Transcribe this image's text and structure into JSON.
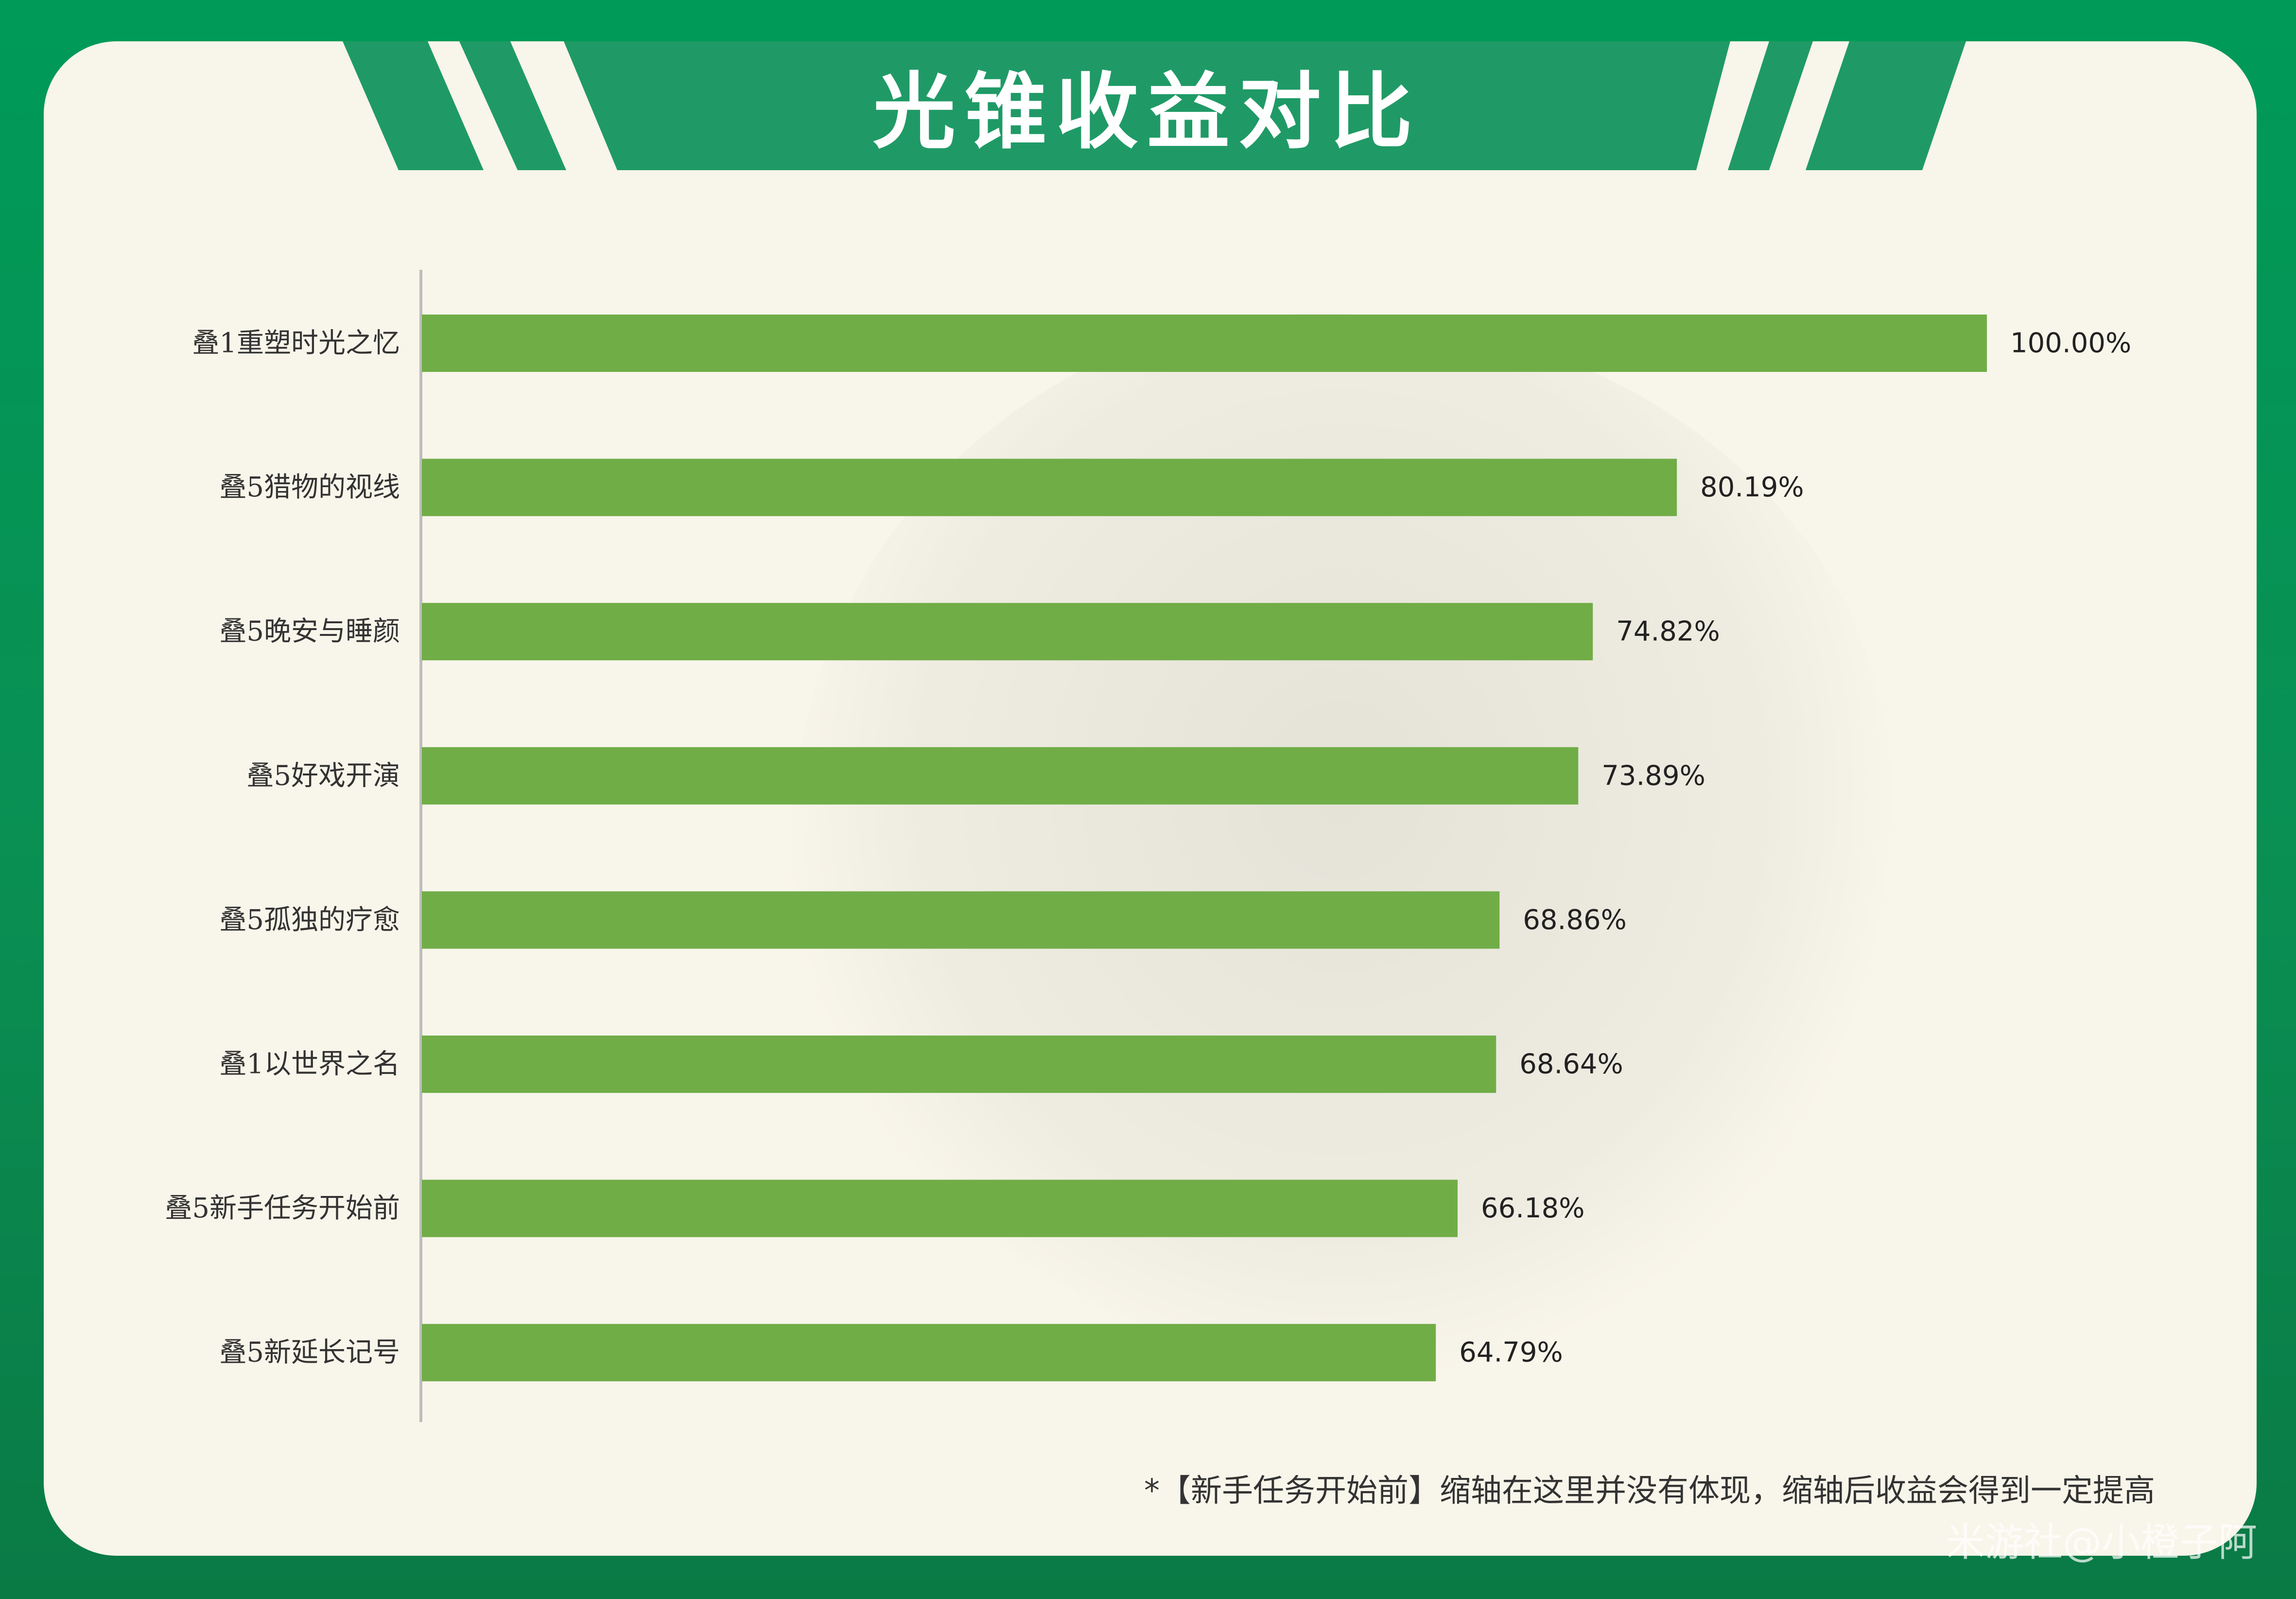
{
  "header": {
    "title": "光锥收益对比"
  },
  "chart_data": {
    "type": "bar",
    "orientation": "horizontal",
    "title": "光锥收益对比",
    "categories": [
      "叠1重塑时光之忆",
      "叠5猎物的视线",
      "叠5晚安与睡颜",
      "叠5好戏开演",
      "叠5孤独的疗愈",
      "叠1以世界之名",
      "叠5新手任务开始前",
      "叠5新延长记号"
    ],
    "values": [
      100.0,
      80.19,
      74.82,
      73.89,
      68.86,
      68.64,
      66.18,
      64.79
    ],
    "value_labels": [
      "100.00%",
      "80.19%",
      "74.82%",
      "73.89%",
      "68.86%",
      "68.64%",
      "66.18%",
      "64.79%"
    ],
    "unit": "%",
    "xlim": [
      0,
      100
    ],
    "grid": false,
    "bar_color": "#70ad47"
  },
  "footnote": "*【新手任务开始前】缩轴在这里并没有体现，缩轴后收益会得到一定提高",
  "credit": "米游社@小橙子阿",
  "colors": {
    "background": "#009a58",
    "card": "#f8f5ea",
    "banner": "#1f9a66",
    "bar": "#70ad47"
  }
}
